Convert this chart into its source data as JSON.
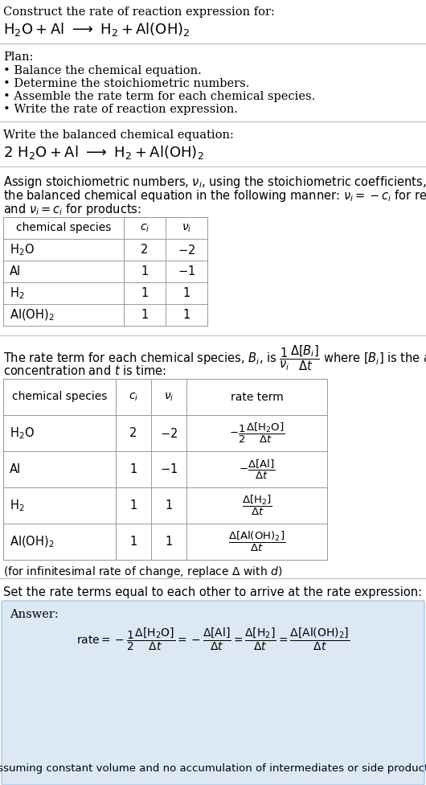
{
  "bg_color": "#ffffff",
  "text_color": "#000000",
  "plan_items": [
    "• Balance the chemical equation.",
    "• Determine the stoichiometric numbers.",
    "• Assemble the rate term for each chemical species.",
    "• Write the rate of reaction expression."
  ],
  "table1_rows": [
    [
      "H₂O",
      "2",
      "−2"
    ],
    [
      "Al",
      "1",
      "−1"
    ],
    [
      "H₂",
      "1",
      "1"
    ],
    [
      "Al(OH)₂",
      "1",
      "1"
    ]
  ],
  "answer_box_color": "#dce9f5",
  "answer_border_color": "#a8c8e8",
  "final_note": "(assuming constant volume and no accumulation of intermediates or side products)"
}
